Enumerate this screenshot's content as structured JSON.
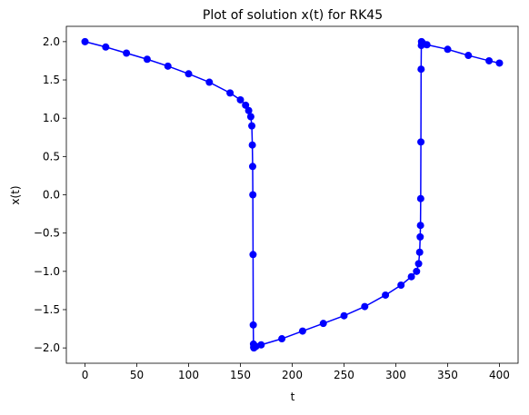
{
  "chart_data": {
    "type": "line",
    "title": "Plot of solution x(t) for RK45",
    "xlabel": "t",
    "ylabel": "x(t)",
    "xlim": [
      -18,
      418
    ],
    "ylim": [
      -2.2,
      2.2
    ],
    "x_ticks": [
      0,
      50,
      100,
      150,
      200,
      250,
      300,
      350,
      400
    ],
    "y_ticks": [
      -2.0,
      -1.5,
      -1.0,
      -0.5,
      0.0,
      0.5,
      1.0,
      1.5,
      2.0
    ],
    "x_tick_labels": [
      "0",
      "50",
      "100",
      "150",
      "200",
      "250",
      "300",
      "350",
      "400"
    ],
    "y_tick_labels": [
      "−2.0",
      "−1.5",
      "−1.0",
      "−0.5",
      "0.0",
      "0.5",
      "1.0",
      "1.5",
      "2.0"
    ],
    "grid": false,
    "series": [
      {
        "color": "#0000ff",
        "marker": "circle",
        "x": [
          0,
          20,
          40,
          60,
          80,
          100,
          120,
          140,
          150,
          155,
          158,
          160,
          161,
          161.5,
          161.8,
          162,
          162.2,
          162.4,
          162.6,
          162.8,
          163,
          163.5,
          165,
          170,
          190,
          210,
          230,
          250,
          270,
          290,
          305,
          315,
          320,
          322,
          323,
          323.5,
          323.8,
          324,
          324.2,
          324.4,
          324.6,
          324.8,
          325,
          326,
          330,
          350,
          370,
          390,
          400
        ],
        "y": [
          2.0,
          1.93,
          1.85,
          1.77,
          1.68,
          1.58,
          1.47,
          1.33,
          1.24,
          1.17,
          1.1,
          1.02,
          0.9,
          0.65,
          0.37,
          0.0,
          -0.78,
          -1.7,
          -1.95,
          -1.99,
          -2.0,
          -1.99,
          -1.98,
          -1.96,
          -1.88,
          -1.78,
          -1.68,
          -1.58,
          -1.46,
          -1.31,
          -1.18,
          -1.07,
          -1.0,
          -0.9,
          -0.75,
          -0.55,
          -0.4,
          -0.05,
          0.69,
          1.64,
          1.95,
          2.0,
          1.99,
          1.98,
          1.96,
          1.9,
          1.82,
          1.75,
          1.72
        ]
      }
    ]
  }
}
